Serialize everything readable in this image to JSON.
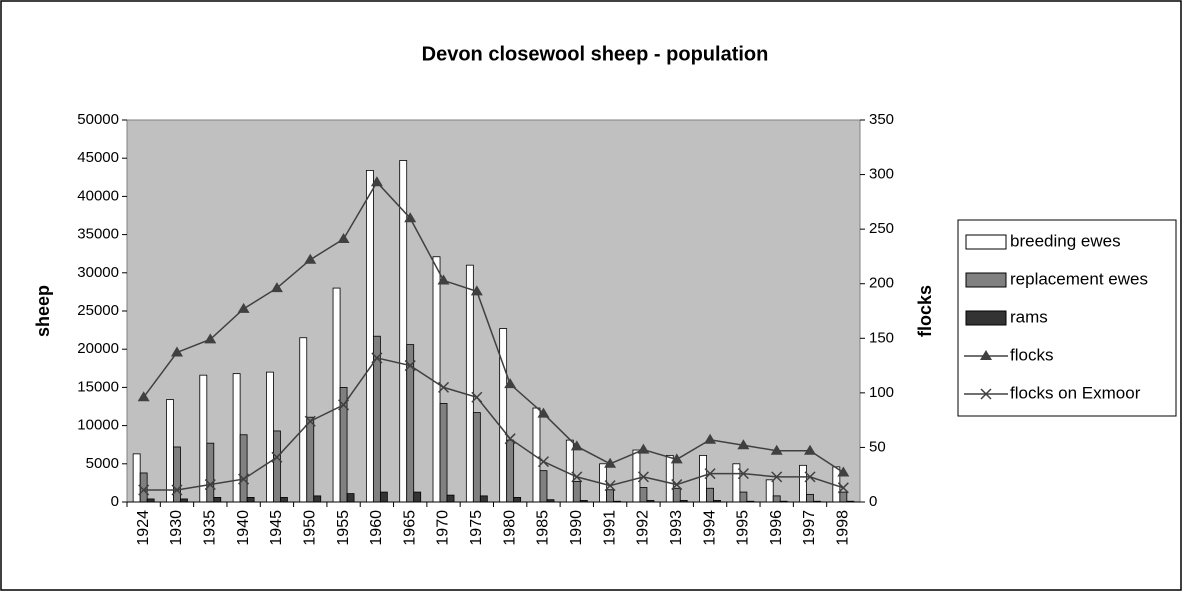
{
  "chart_data": {
    "type": "bar",
    "title": "Devon closewool sheep  - population",
    "y_label": "sheep",
    "y2_label": "flocks",
    "categories": [
      "1924",
      "1930",
      "1935",
      "1940",
      "1945",
      "1950",
      "1955",
      "1960",
      "1965",
      "1970",
      "1975",
      "1980",
      "1985",
      "1990",
      "1991",
      "1992",
      "1993",
      "1994",
      "1995",
      "1996",
      "1997",
      "1998"
    ],
    "ylim": [
      0,
      50000
    ],
    "yticks": [
      0,
      5000,
      10000,
      15000,
      20000,
      25000,
      30000,
      35000,
      40000,
      45000,
      50000
    ],
    "y2lim": [
      0,
      350
    ],
    "y2ticks": [
      0,
      50,
      100,
      150,
      200,
      250,
      300,
      350
    ],
    "legend": "right",
    "background": "#c0c0c0",
    "series": [
      {
        "name": "breeding ewes",
        "type": "bar",
        "color": "#ffffff",
        "values": [
          6300,
          13400,
          16600,
          16800,
          17000,
          21500,
          28000,
          43400,
          44700,
          32100,
          31000,
          22700,
          12300,
          8100,
          5000,
          6800,
          6100,
          6100,
          5000,
          2900,
          4800,
          4600
        ]
      },
      {
        "name": "replacement ewes",
        "type": "bar",
        "color": "#808080",
        "values": [
          3800,
          7200,
          7700,
          8800,
          9300,
          11100,
          15000,
          21700,
          20600,
          12900,
          11700,
          8100,
          4100,
          2700,
          1600,
          1900,
          1800,
          1800,
          1300,
          800,
          1000,
          1300
        ]
      },
      {
        "name": "rams",
        "type": "bar",
        "color": "#333333",
        "values": [
          400,
          400,
          600,
          600,
          600,
          800,
          1100,
          1300,
          1300,
          900,
          800,
          600,
          300,
          200,
          100,
          200,
          200,
          200,
          100,
          100,
          100,
          100
        ]
      },
      {
        "name": "flocks",
        "type": "line",
        "axis": "y2",
        "color": "#404040",
        "marker": "triangle",
        "values": [
          96,
          137,
          149,
          177,
          196,
          222,
          241,
          293,
          260,
          203,
          193,
          108,
          81,
          51,
          35,
          48,
          39,
          57,
          52,
          47,
          47,
          27
        ]
      },
      {
        "name": "flocks on Exmoor",
        "type": "line",
        "axis": "y2",
        "color": "#404040",
        "marker": "x",
        "values": [
          11,
          11,
          16,
          21,
          41,
          74,
          89,
          132,
          125,
          105,
          96,
          58,
          37,
          23,
          15,
          23,
          16,
          26,
          26,
          23,
          23,
          13
        ]
      }
    ]
  }
}
